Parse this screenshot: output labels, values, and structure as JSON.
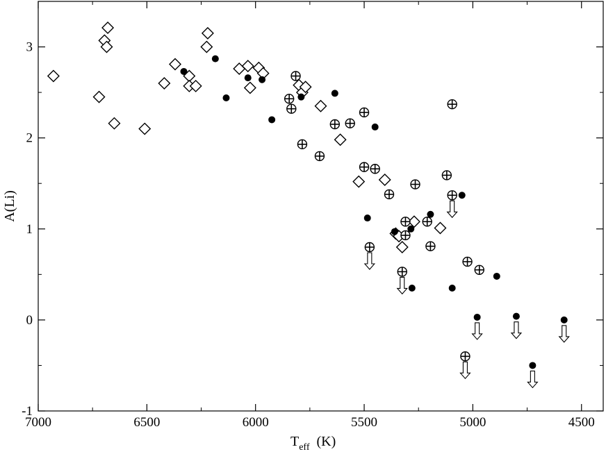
{
  "chart_data": {
    "type": "scatter",
    "xlabel": "T",
    "xlabel_sub": "eff",
    "xlabel_unit": "(K)",
    "ylabel": "A(Li)",
    "xlim": [
      7000,
      4400
    ],
    "ylim": [
      -1,
      3.5
    ],
    "x_reversed": true,
    "x_ticks": [
      {
        "value": 7000,
        "label": "7000"
      },
      {
        "value": 6500,
        "label": "6500"
      },
      {
        "value": 6000,
        "label": "6000"
      },
      {
        "value": 5500,
        "label": "5500"
      },
      {
        "value": 5000,
        "label": "5000"
      },
      {
        "value": 4500,
        "label": "4500"
      }
    ],
    "y_ticks": [
      {
        "value": -1,
        "label": "-1"
      },
      {
        "value": 0,
        "label": "0"
      },
      {
        "value": 1,
        "label": "1"
      },
      {
        "value": 2,
        "label": "2"
      },
      {
        "value": 3,
        "label": "3"
      }
    ],
    "grid": false,
    "series": [
      {
        "marker": "open-diamond",
        "points": [
          {
            "x": 6930,
            "y": 2.68
          },
          {
            "x": 6720,
            "y": 2.45
          },
          {
            "x": 6695,
            "y": 3.07
          },
          {
            "x": 6685,
            "y": 3.0
          },
          {
            "x": 6680,
            "y": 3.21
          },
          {
            "x": 6650,
            "y": 2.16
          },
          {
            "x": 6510,
            "y": 2.1
          },
          {
            "x": 6420,
            "y": 2.6
          },
          {
            "x": 6370,
            "y": 2.81
          },
          {
            "x": 6305,
            "y": 2.68
          },
          {
            "x": 6305,
            "y": 2.57
          },
          {
            "x": 6275,
            "y": 2.57
          },
          {
            "x": 6225,
            "y": 3.0
          },
          {
            "x": 6220,
            "y": 3.15
          },
          {
            "x": 6075,
            "y": 2.76
          },
          {
            "x": 6035,
            "y": 2.79
          },
          {
            "x": 6025,
            "y": 2.55
          },
          {
            "x": 5985,
            "y": 2.77
          },
          {
            "x": 5965,
            "y": 2.71
          },
          {
            "x": 5800,
            "y": 2.58
          },
          {
            "x": 5785,
            "y": 2.5
          },
          {
            "x": 5770,
            "y": 2.56
          },
          {
            "x": 5700,
            "y": 2.35
          },
          {
            "x": 5610,
            "y": 1.98
          },
          {
            "x": 5525,
            "y": 1.52
          },
          {
            "x": 5405,
            "y": 1.54
          },
          {
            "x": 5355,
            "y": 0.95
          },
          {
            "x": 5340,
            "y": 0.92
          },
          {
            "x": 5325,
            "y": 0.8
          },
          {
            "x": 5270,
            "y": 1.08
          },
          {
            "x": 5150,
            "y": 1.01
          }
        ]
      },
      {
        "marker": "filled-circle",
        "points": [
          {
            "x": 6330,
            "y": 2.73
          },
          {
            "x": 6185,
            "y": 2.87
          },
          {
            "x": 6135,
            "y": 2.44
          },
          {
            "x": 6035,
            "y": 2.66
          },
          {
            "x": 5970,
            "y": 2.64
          },
          {
            "x": 5925,
            "y": 2.2
          },
          {
            "x": 5790,
            "y": 2.45
          },
          {
            "x": 5635,
            "y": 2.49
          },
          {
            "x": 5450,
            "y": 2.12
          },
          {
            "x": 5485,
            "y": 1.12
          },
          {
            "x": 5360,
            "y": 0.97
          },
          {
            "x": 5285,
            "y": 1.0
          },
          {
            "x": 5280,
            "y": 0.35
          },
          {
            "x": 5195,
            "y": 1.16
          },
          {
            "x": 5050,
            "y": 1.37
          },
          {
            "x": 5095,
            "y": 0.35
          },
          {
            "x": 4890,
            "y": 0.48
          }
        ]
      },
      {
        "marker": "filled-circle-upper-limit",
        "points": [
          {
            "x": 4980,
            "y": 0.03
          },
          {
            "x": 4800,
            "y": 0.04
          },
          {
            "x": 4580,
            "y": 0.0
          },
          {
            "x": 4725,
            "y": -0.5
          }
        ]
      },
      {
        "marker": "circle-plus",
        "points": [
          {
            "x": 5815,
            "y": 2.68
          },
          {
            "x": 5845,
            "y": 2.43
          },
          {
            "x": 5835,
            "y": 2.32
          },
          {
            "x": 5785,
            "y": 1.93
          },
          {
            "x": 5705,
            "y": 1.8
          },
          {
            "x": 5635,
            "y": 2.15
          },
          {
            "x": 5565,
            "y": 2.16
          },
          {
            "x": 5500,
            "y": 2.28
          },
          {
            "x": 5500,
            "y": 1.68
          },
          {
            "x": 5450,
            "y": 1.66
          },
          {
            "x": 5385,
            "y": 1.38
          },
          {
            "x": 5265,
            "y": 1.49
          },
          {
            "x": 5310,
            "y": 1.08
          },
          {
            "x": 5310,
            "y": 0.93
          },
          {
            "x": 5210,
            "y": 1.08
          },
          {
            "x": 5195,
            "y": 0.81
          },
          {
            "x": 5120,
            "y": 1.59
          },
          {
            "x": 5095,
            "y": 2.37
          },
          {
            "x": 5025,
            "y": 0.64
          },
          {
            "x": 4970,
            "y": 0.55
          }
        ]
      },
      {
        "marker": "circle-plus-upper-limit",
        "points": [
          {
            "x": 5475,
            "y": 0.8
          },
          {
            "x": 5325,
            "y": 0.53
          },
          {
            "x": 5095,
            "y": 1.37
          },
          {
            "x": 5035,
            "y": -0.4
          }
        ]
      }
    ]
  }
}
